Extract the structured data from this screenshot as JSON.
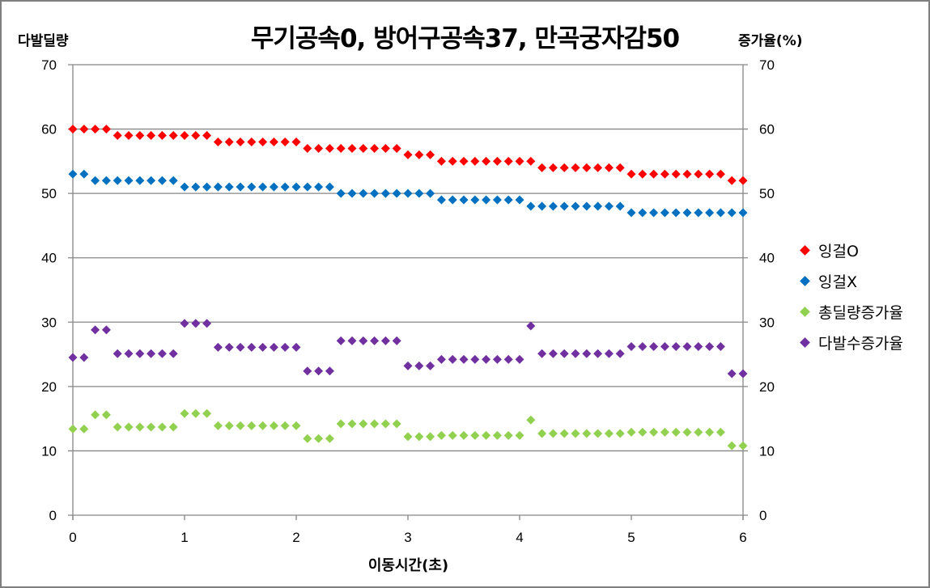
{
  "chart_data": {
    "type": "scatter",
    "title": "무기공속0, 방어구공속37, 만곡궁자감50",
    "xlabel": "이동시간(초)",
    "ylabel": "다발딜량",
    "y2label": "증가율(%)",
    "xlim": [
      0,
      6
    ],
    "ylim": [
      0,
      70
    ],
    "y2lim": [
      0,
      70
    ],
    "x_ticks": [
      "0",
      "1",
      "2",
      "3",
      "4",
      "5",
      "6"
    ],
    "y_ticks": [
      "0",
      "10",
      "20",
      "30",
      "40",
      "50",
      "60",
      "70"
    ],
    "y2_ticks": [
      "0",
      "10",
      "20",
      "30",
      "40",
      "50",
      "60",
      "70"
    ],
    "grid": true,
    "legend_position": "right",
    "x": [
      0.0,
      0.1,
      0.2,
      0.3,
      0.4,
      0.5,
      0.6,
      0.7,
      0.8,
      0.9,
      1.0,
      1.1,
      1.2,
      1.3,
      1.4,
      1.5,
      1.6,
      1.7,
      1.8,
      1.9,
      2.0,
      2.1,
      2.2,
      2.3,
      2.4,
      2.5,
      2.6,
      2.7,
      2.8,
      2.9,
      3.0,
      3.1,
      3.2,
      3.3,
      3.4,
      3.5,
      3.6,
      3.7,
      3.8,
      3.9,
      4.0,
      4.1,
      4.2,
      4.3,
      4.4,
      4.5,
      4.6,
      4.7,
      4.8,
      4.9,
      5.0,
      5.1,
      5.2,
      5.3,
      5.4,
      5.5,
      5.6,
      5.7,
      5.8,
      5.9,
      6.0
    ],
    "series": [
      {
        "name": "잉걸O",
        "color": "#ff0000",
        "axis": "left",
        "values": [
          60,
          60,
          60,
          60,
          59,
          59,
          59,
          59,
          59,
          59,
          59,
          59,
          59,
          58,
          58,
          58,
          58,
          58,
          58,
          58,
          58,
          57,
          57,
          57,
          57,
          57,
          57,
          57,
          57,
          57,
          56,
          56,
          56,
          55,
          55,
          55,
          55,
          55,
          55,
          55,
          55,
          55,
          54,
          54,
          54,
          54,
          54,
          54,
          54,
          54,
          53,
          53,
          53,
          53,
          53,
          53,
          53,
          53,
          53,
          52,
          52
        ]
      },
      {
        "name": "잉걸X",
        "color": "#0070c0",
        "axis": "left",
        "values": [
          53,
          53,
          52,
          52,
          52,
          52,
          52,
          52,
          52,
          52,
          51,
          51,
          51,
          51,
          51,
          51,
          51,
          51,
          51,
          51,
          51,
          51,
          51,
          51,
          50,
          50,
          50,
          50,
          50,
          50,
          50,
          50,
          50,
          49,
          49,
          49,
          49,
          49,
          49,
          49,
          49,
          48,
          48,
          48,
          48,
          48,
          48,
          48,
          48,
          48,
          47,
          47,
          47,
          47,
          47,
          47,
          47,
          47,
          47,
          47,
          47
        ]
      },
      {
        "name": "총딜량증가율",
        "color": "#92d050",
        "axis": "right",
        "values": [
          13.4,
          13.4,
          15.6,
          15.6,
          13.7,
          13.7,
          13.7,
          13.7,
          13.7,
          13.7,
          15.8,
          15.8,
          15.8,
          13.9,
          13.9,
          13.9,
          13.9,
          13.9,
          13.9,
          13.9,
          13.9,
          11.9,
          11.9,
          11.9,
          14.2,
          14.2,
          14.2,
          14.2,
          14.2,
          14.2,
          12.2,
          12.2,
          12.2,
          12.4,
          12.4,
          12.4,
          12.4,
          12.4,
          12.4,
          12.4,
          12.4,
          14.8,
          12.7,
          12.7,
          12.7,
          12.7,
          12.7,
          12.7,
          12.7,
          12.7,
          12.9,
          12.9,
          12.9,
          12.9,
          12.9,
          12.9,
          12.9,
          12.9,
          12.9,
          10.8,
          10.8
        ]
      },
      {
        "name": "다발수증가율",
        "color": "#7030a0",
        "axis": "right",
        "values": [
          24.5,
          24.5,
          28.8,
          28.8,
          25.1,
          25.1,
          25.1,
          25.1,
          25.1,
          25.1,
          29.8,
          29.8,
          29.8,
          26.1,
          26.1,
          26.1,
          26.1,
          26.1,
          26.1,
          26.1,
          26.1,
          22.4,
          22.4,
          22.4,
          27.1,
          27.1,
          27.1,
          27.1,
          27.1,
          27.1,
          23.2,
          23.2,
          23.2,
          24.2,
          24.2,
          24.2,
          24.2,
          24.2,
          24.2,
          24.2,
          24.2,
          29.4,
          25.1,
          25.1,
          25.1,
          25.1,
          25.1,
          25.1,
          25.1,
          25.1,
          26.2,
          26.2,
          26.2,
          26.2,
          26.2,
          26.2,
          26.2,
          26.2,
          26.2,
          22.0,
          22.0
        ]
      }
    ]
  },
  "style": {
    "gridline_color": "#868686",
    "axis_color": "#868686",
    "frame_color": "#7f7f7f"
  }
}
